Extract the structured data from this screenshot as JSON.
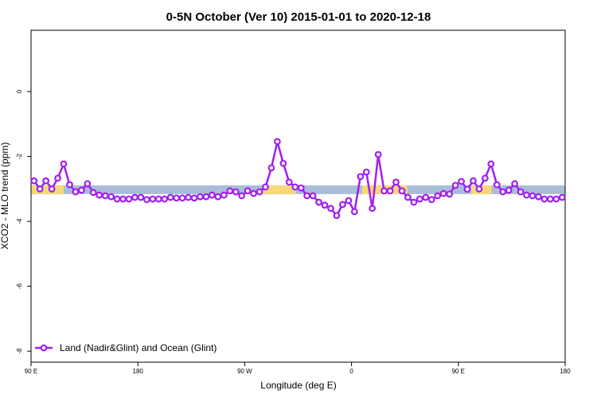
{
  "chart_data": {
    "type": "line",
    "title": "0-5N October (Ver 10)   2015-01-01 to 2020-12-18",
    "xlabel": "Longitude (deg E)",
    "ylabel": "XCO2 - MLO trend (ppm)",
    "x": [
      92.5,
      97.5,
      102.5,
      107.5,
      112.5,
      117.5,
      122.5,
      127.5,
      132.5,
      137.5,
      142.5,
      147.5,
      152.5,
      157.5,
      162.5,
      167.5,
      172.5,
      177.5,
      182.5,
      187.5,
      192.5,
      197.5,
      202.5,
      207.5,
      212.5,
      217.5,
      222.5,
      227.5,
      232.5,
      237.5,
      242.5,
      247.5,
      252.5,
      257.5,
      262.5,
      267.5,
      272.5,
      277.5,
      282.5,
      287.5,
      292.5,
      297.5,
      302.5,
      307.5,
      312.5,
      317.5,
      322.5,
      327.5,
      332.5,
      337.5,
      342.5,
      347.5,
      352.5,
      357.5,
      362.5,
      367.5,
      372.5,
      377.5,
      382.5,
      387.5,
      392.5,
      397.5,
      402.5,
      407.5,
      412.5,
      417.5,
      422.5,
      427.5,
      432.5,
      437.5,
      442.5,
      447.5,
      452.5,
      457.5,
      462.5,
      467.5,
      472.5,
      477.5,
      482.5,
      487.5,
      492.5,
      497.5,
      502.5,
      507.5,
      512.5,
      517.5,
      522.5,
      527.5,
      532.5,
      537.5
    ],
    "series": [
      {
        "name": "Land (Nadir&Glint) and Ocean (Glint)",
        "color": "#a020f0",
        "values": [
          -2.75,
          -3.0,
          -2.75,
          -3.0,
          -2.67,
          -2.23,
          -2.87,
          -3.09,
          -3.04,
          -2.84,
          -3.11,
          -3.19,
          -3.21,
          -3.24,
          -3.31,
          -3.31,
          -3.31,
          -3.26,
          -3.26,
          -3.33,
          -3.31,
          -3.31,
          -3.31,
          -3.26,
          -3.28,
          -3.28,
          -3.26,
          -3.28,
          -3.24,
          -3.24,
          -3.19,
          -3.24,
          -3.19,
          -3.06,
          -3.09,
          -3.21,
          -3.06,
          -3.14,
          -3.09,
          -2.94,
          -2.35,
          -1.54,
          -2.21,
          -2.79,
          -2.94,
          -2.97,
          -3.21,
          -3.21,
          -3.41,
          -3.5,
          -3.6,
          -3.82,
          -3.48,
          -3.36,
          -3.7,
          -2.62,
          -2.48,
          -3.6,
          -1.94,
          -3.06,
          -3.06,
          -2.79,
          -3.06,
          -3.26,
          -3.41,
          -3.31,
          -3.26,
          -3.33,
          -3.21,
          -3.14,
          -3.16,
          -2.89,
          -2.77,
          -3.01,
          -2.75,
          -3.0,
          -2.67,
          -2.23,
          -2.87,
          -3.09,
          -3.04,
          -2.84,
          -3.09,
          -3.19,
          -3.21,
          -3.24,
          -3.31,
          -3.31,
          -3.31,
          -3.26
        ]
      }
    ],
    "band": {
      "ylim": [
        -3.16,
        -2.89
      ],
      "color": "#a9bdd8",
      "land_color": "#f8d878",
      "land": [
        [
          90,
          117.5
        ],
        [
          285,
          313
        ],
        [
          369,
          407
        ],
        [
          461,
          478
        ]
      ]
    },
    "xlim": [
      90,
      540
    ],
    "xticks": [
      {
        "value": 90,
        "label": "90 E"
      },
      180,
      {
        "value": 270,
        "label": "90 W"
      },
      {
        "value": 360,
        "label": "0"
      },
      {
        "value": 450,
        "label": "90 E"
      },
      {
        "value": 540,
        "label": "180"
      }
    ],
    "ylim": [
      -8.34,
      1.89
    ],
    "yticks": [
      0,
      -2,
      -4,
      -6,
      -8
    ],
    "legend": "bottom-left"
  }
}
